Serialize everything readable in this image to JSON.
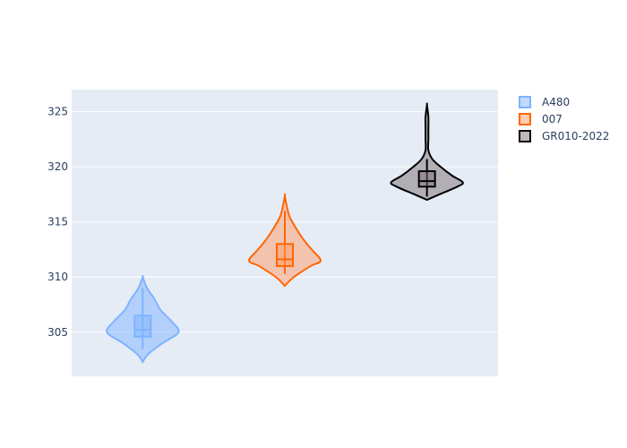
{
  "chart_data": {
    "type": "violin",
    "title": "",
    "xlabel": "",
    "ylabel": "",
    "ylim": [
      301,
      327
    ],
    "yticks": [
      305,
      310,
      315,
      320,
      325
    ],
    "grid": true,
    "legend_placement": "top-right",
    "colors": {
      "plot_bg": "#e5ecf6",
      "grid": "#ffffff",
      "tick_text": "#2a3f5f"
    },
    "series": [
      {
        "name": "A480",
        "color": "#7fb3ff",
        "fill": "#7fb3ff",
        "min": 302.3,
        "q1": 304.6,
        "median": 305.2,
        "q3": 306.5,
        "max": 310.0,
        "whisker_low": 303.5,
        "whisker_high": 309.0,
        "profile": [
          [
            302.3,
            0.0
          ],
          [
            303.0,
            0.15
          ],
          [
            304.0,
            0.55
          ],
          [
            305.0,
            1.0
          ],
          [
            306.0,
            0.8
          ],
          [
            307.0,
            0.5
          ],
          [
            308.0,
            0.33
          ],
          [
            309.0,
            0.12
          ],
          [
            310.0,
            0.0
          ]
        ]
      },
      {
        "name": "007",
        "color": "#ff6600",
        "fill": "#ff9966",
        "min": 309.2,
        "q1": 311.0,
        "median": 311.6,
        "q3": 313.0,
        "max": 317.4,
        "whisker_low": 310.3,
        "whisker_high": 316.0,
        "profile": [
          [
            309.2,
            0.0
          ],
          [
            310.0,
            0.25
          ],
          [
            311.0,
            0.72
          ],
          [
            311.5,
            1.0
          ],
          [
            312.5,
            0.75
          ],
          [
            313.5,
            0.5
          ],
          [
            314.5,
            0.3
          ],
          [
            315.5,
            0.13
          ],
          [
            316.5,
            0.05
          ],
          [
            317.4,
            0.0
          ]
        ]
      },
      {
        "name": "GR010-2022",
        "color": "#000000",
        "fill": "#806f75",
        "min": 317.0,
        "q1": 318.2,
        "median": 318.7,
        "q3": 319.6,
        "max": 325.6,
        "whisker_low": 317.3,
        "whisker_high": 320.7,
        "profile": [
          [
            317.0,
            0.0
          ],
          [
            317.5,
            0.35
          ],
          [
            318.2,
            0.85
          ],
          [
            318.6,
            1.0
          ],
          [
            319.2,
            0.7
          ],
          [
            320.0,
            0.38
          ],
          [
            320.7,
            0.15
          ],
          [
            321.5,
            0.04
          ],
          [
            322.5,
            0.04
          ],
          [
            323.5,
            0.04
          ],
          [
            324.5,
            0.04
          ],
          [
            325.6,
            0.0
          ]
        ]
      }
    ]
  }
}
